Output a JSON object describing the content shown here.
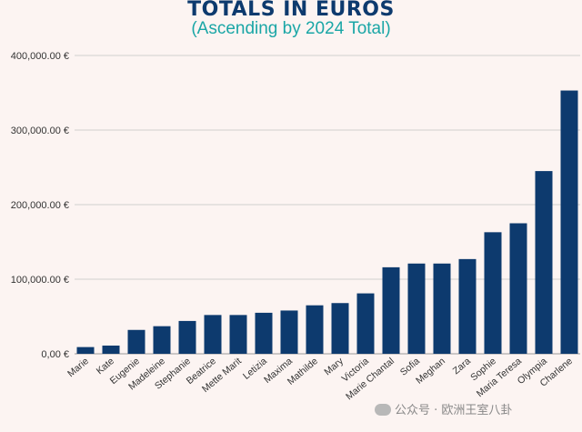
{
  "chart_data": {
    "type": "bar",
    "title": "TOTALS IN EUROS",
    "subtitle": "(Ascending by 2024 Total)",
    "categories": [
      "Marie",
      "Kate",
      "Eugenie",
      "Madeleine",
      "Stephanie",
      "Beatrice",
      "Mette Marit",
      "Letizia",
      "Maxima",
      "Mathilde",
      "Mary",
      "Victoria",
      "Marie Chantal",
      "Sofia",
      "Meghan",
      "Zara",
      "Sophie",
      "Maria Teresa",
      "Olympia",
      "Charlene"
    ],
    "values": [
      9000,
      11000,
      32000,
      37000,
      44000,
      52000,
      52000,
      55000,
      58000,
      65000,
      68000,
      81000,
      116000,
      121000,
      121000,
      127000,
      163000,
      175000,
      245000,
      353000
    ],
    "ylim": [
      0,
      400000
    ],
    "yticks": [
      "0,00 €",
      "100,000.00 €",
      "200,000.00 €",
      "300,000.00 €",
      "400,000.00 €"
    ],
    "ytick_values": [
      0,
      100000,
      200000,
      300000,
      400000
    ],
    "xlabel": "",
    "ylabel": "",
    "grid": true,
    "bar_color": "#0d3a6e"
  },
  "watermark": "公众号 · 欧洲王室八卦",
  "colors": {
    "background": "#fcf4f2",
    "title": "#0d3a6e",
    "subtitle": "#1aa6a6"
  }
}
